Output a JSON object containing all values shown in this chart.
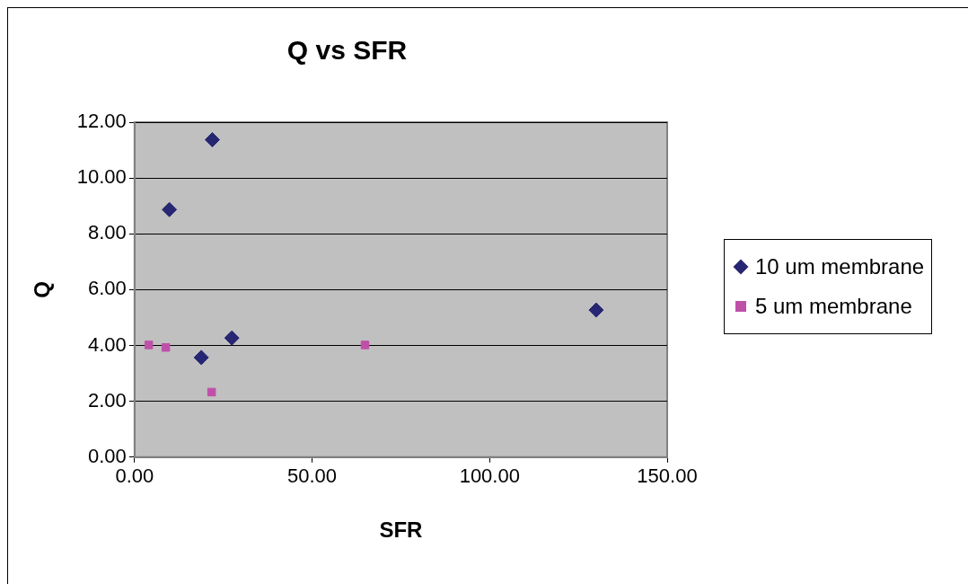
{
  "chart_data": {
    "type": "scatter",
    "title": "Q vs SFR",
    "xlabel": "SFR",
    "ylabel": "Q",
    "xlim": [
      0,
      150
    ],
    "xticks": [
      {
        "value": 0,
        "label": "0.00"
      },
      {
        "value": 50,
        "label": "50.00"
      },
      {
        "value": 100,
        "label": "100.00"
      },
      {
        "value": 150,
        "label": "150.00"
      }
    ],
    "ylim": [
      0,
      12
    ],
    "yticks": [
      {
        "value": 0,
        "label": "0.00"
      },
      {
        "value": 2,
        "label": "2.00"
      },
      {
        "value": 4,
        "label": "4.00"
      },
      {
        "value": 6,
        "label": "6.00"
      },
      {
        "value": 8,
        "label": "8.00"
      },
      {
        "value": 10,
        "label": "10.00"
      },
      {
        "value": 12,
        "label": "12.00"
      }
    ],
    "grid": "y",
    "legend": "right",
    "series": [
      {
        "name": "10 um membrane",
        "color": "#262673",
        "marker": "diamond",
        "x": [
          21.9,
          9.8,
          18.8,
          27.4,
          130
        ],
        "values": [
          11.37,
          8.87,
          3.57,
          4.27,
          5.27
        ]
      },
      {
        "name": "5 um membrane",
        "color": "#bf50a8",
        "marker": "square",
        "x": [
          4,
          8.8,
          21.7,
          64.9
        ],
        "values": [
          4.02,
          3.93,
          2.33,
          4.02
        ]
      }
    ]
  }
}
